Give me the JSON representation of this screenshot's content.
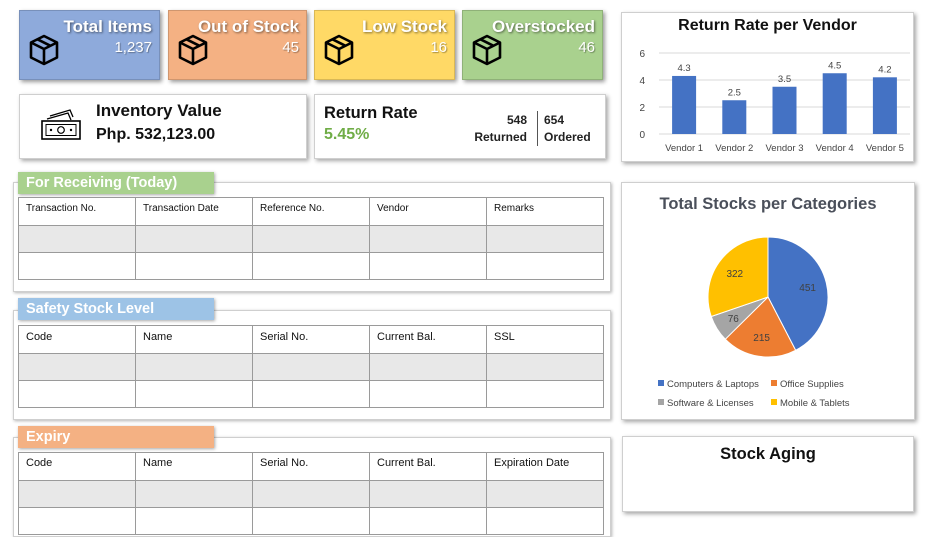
{
  "kpis": [
    {
      "title": "Total Items",
      "value": "1,237",
      "color": "#8eaadb"
    },
    {
      "title": "Out of Stock",
      "value": "45",
      "color": "#f4b183"
    },
    {
      "title": "Low Stock",
      "value": "16",
      "color": "#ffd966"
    },
    {
      "title": "Overstocked",
      "value": "46",
      "color": "#a9d18e"
    }
  ],
  "inventory_value": {
    "label": "Inventory Value",
    "value": "Php. 532,123.00",
    "icon": "money-icon"
  },
  "return_rate": {
    "label": "Return Rate",
    "value": "5.45%",
    "returned_count": "548",
    "returned_label": "Returned",
    "ordered_count": "654",
    "ordered_label": "Ordered"
  },
  "receiving": {
    "tab": "For Receiving (Today)",
    "color": "#a9d18e",
    "columns": [
      "Transaction No.",
      "Transaction Date",
      "Reference No.",
      "Vendor",
      "Remarks"
    ]
  },
  "safety": {
    "tab": "Safety Stock Level",
    "color": "#9dc3e6",
    "columns": [
      "Code",
      "Name",
      "Serial No.",
      "Current Bal.",
      "SSL"
    ]
  },
  "expiry": {
    "tab": "Expiry",
    "color": "#f4b183",
    "columns": [
      "Code",
      "Name",
      "Serial No.",
      "Current Bal.",
      "Expiration Date"
    ]
  },
  "stock_aging": {
    "title": "Stock Aging"
  },
  "chart_data": [
    {
      "type": "bar",
      "title": "Return Rate per Vendor",
      "categories": [
        "Vendor 1",
        "Vendor 2",
        "Vendor 3",
        "Vendor 4",
        "Vendor 5"
      ],
      "values": [
        4.3,
        2.5,
        3.5,
        4.5,
        4.2
      ],
      "ylim": [
        0,
        6
      ],
      "yticks": [
        0,
        2,
        4,
        6
      ],
      "grid": true,
      "color": "#4472c4"
    },
    {
      "type": "pie",
      "title": "Total Stocks per Categories",
      "legend": "bottom",
      "slices": [
        {
          "label": "Computers & Laptops",
          "value": 451,
          "color": "#4472c4"
        },
        {
          "label": "Office Supplies",
          "value": 215,
          "color": "#ed7d31"
        },
        {
          "label": "Software & Licenses",
          "value": 76,
          "color": "#a5a5a5"
        },
        {
          "label": "Mobile & Tablets",
          "value": 322,
          "color": "#ffc000"
        }
      ]
    }
  ]
}
